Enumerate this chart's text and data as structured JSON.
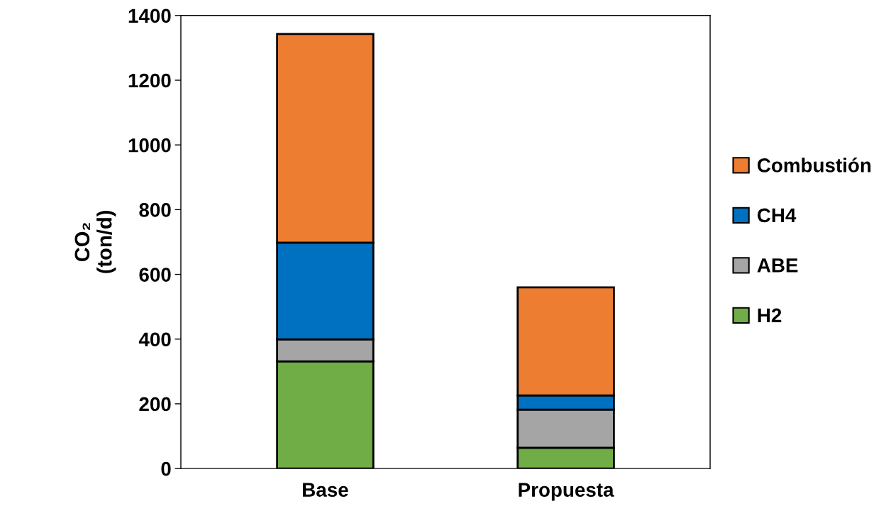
{
  "chart_data": {
    "type": "bar",
    "stacked": true,
    "ylabel": "CO₂\n(ton/d)",
    "categories": [
      "Base",
      "Propuesta"
    ],
    "series": [
      {
        "name": "H2",
        "color": "#70ad47",
        "values": [
          331,
          64
        ]
      },
      {
        "name": "ABE",
        "color": "#a5a5a5",
        "values": [
          68,
          118
        ]
      },
      {
        "name": "CH4",
        "color": "#0070c0",
        "values": [
          299,
          44
        ]
      },
      {
        "name": "Combustión",
        "color": "#ed7d31",
        "values": [
          645,
          334
        ]
      }
    ],
    "ylim": [
      0,
      1400
    ],
    "yticks": [
      0,
      200,
      400,
      600,
      800,
      1000,
      1200,
      1400
    ],
    "grid": false,
    "legend": "right"
  }
}
